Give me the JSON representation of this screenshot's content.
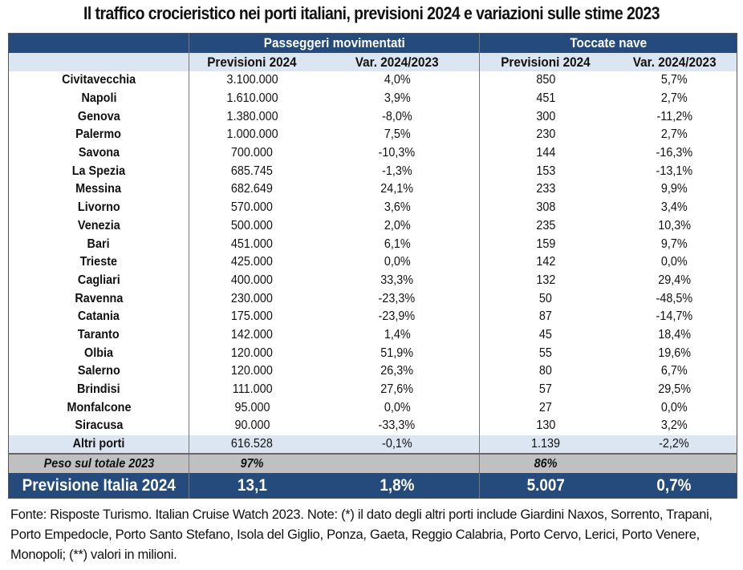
{
  "title": "Il traffico crocieristico nei porti italiani, previsioni 2024 e variazioni sulle stime 2023",
  "headers": {
    "group1": "Passeggeri movimentati",
    "group2": "Toccate nave",
    "sub": [
      "Previsioni 2024",
      "Var. 2024/2023",
      "Previsioni 2024",
      "Var. 2024/2023"
    ]
  },
  "rows": [
    [
      "Civitavecchia",
      "3.100.000",
      "4,0%",
      "850",
      "5,7%"
    ],
    [
      "Napoli",
      "1.610.000",
      "3,9%",
      "451",
      "2,7%"
    ],
    [
      "Genova",
      "1.380.000",
      "-8,0%",
      "300",
      "-11,2%"
    ],
    [
      "Palermo",
      "1.000.000",
      "7,5%",
      "230",
      "2,7%"
    ],
    [
      "Savona",
      "700.000",
      "-10,3%",
      "144",
      "-16,3%"
    ],
    [
      "La Spezia",
      "685.745",
      "-1,3%",
      "153",
      "-13,1%"
    ],
    [
      "Messina",
      "682.649",
      "24,1%",
      "233",
      "9,9%"
    ],
    [
      "Livorno",
      "570.000",
      "3,6%",
      "308",
      "3,4%"
    ],
    [
      "Venezia",
      "500.000",
      "2,0%",
      "235",
      "10,3%"
    ],
    [
      "Bari",
      "451.000",
      "6,1%",
      "159",
      "9,7%"
    ],
    [
      "Trieste",
      "425.000",
      "0,0%",
      "142",
      "0,0%"
    ],
    [
      "Cagliari",
      "400.000",
      "33,3%",
      "132",
      "29,4%"
    ],
    [
      "Ravenna",
      "230.000",
      "-23,3%",
      "50",
      "-48,5%"
    ],
    [
      "Catania",
      "175.000",
      "-23,9%",
      "87",
      "-14,7%"
    ],
    [
      "Taranto",
      "142.000",
      "1,4%",
      "45",
      "18,4%"
    ],
    [
      "Olbia",
      "120.000",
      "51,9%",
      "55",
      "19,6%"
    ],
    [
      "Salerno",
      "120.000",
      "26,3%",
      "80",
      "6,7%"
    ],
    [
      "Brindisi",
      "111.000",
      "27,6%",
      "57",
      "29,5%"
    ],
    [
      "Monfalcone",
      "95.000",
      "0,0%",
      "27",
      "0,0%"
    ],
    [
      "Siracusa",
      "90.000",
      "-33,3%",
      "130",
      "3,2%"
    ]
  ],
  "altri": [
    "Altri porti",
    "616.528",
    "-0,1%",
    "1.139",
    "-2,2%"
  ],
  "peso": [
    "Peso sul totale 2023",
    "97%",
    "",
    "86%",
    ""
  ],
  "totale": [
    "Previsione Italia 2024",
    "13,1",
    "1,8%",
    "5.007",
    "0,7%"
  ],
  "footer": "Fonte: Risposte Turismo. Italian Cruise Watch 2023. Note: (*) il dato degli altri porti include Giardini Naxos, Sorrento, Trapani, Porto Empedocle, Porto Santo Stefano, Isola del Giglio, Ponza, Gaeta, Reggio Calabria, Porto Cervo, Lerici, Porto Venere, Monopoli; (**) valori in milioni.",
  "colors": {
    "header_dark": "#244b7b",
    "header_light": "#dce6f2",
    "peso_gray": "#c0c0c0"
  }
}
